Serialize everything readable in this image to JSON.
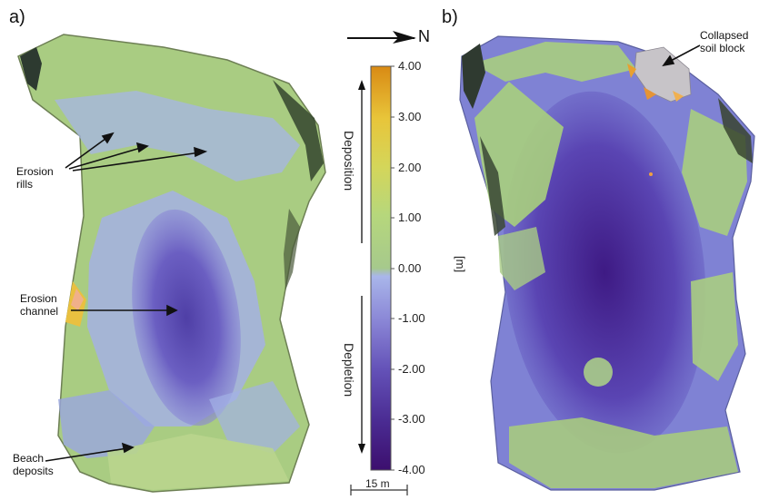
{
  "panels": {
    "a_label": "a)",
    "b_label": "b)"
  },
  "annotations": {
    "erosion_rills": "Erosion\nrills",
    "erosion_channel": "Erosion\nchannel",
    "beach_deposits": "Beach\ndeposits",
    "collapsed_soil_block": "Collapsed\nsoil block"
  },
  "north_arrow": {
    "label": "N"
  },
  "colorbar": {
    "unit": "[m]",
    "deposition_label": "Deposition",
    "depletion_label": "Depletion",
    "ticks": [
      "4.00",
      "3.00",
      "2.00",
      "1.00",
      "0.00",
      "-1.00",
      "-2.00",
      "-3.00",
      "-4.00"
    ],
    "range": [
      -4,
      4
    ]
  },
  "scale_bar": {
    "label": "15 m"
  },
  "colors": {
    "deposition_high": "#d98a14",
    "deposition_mid": "#e8c53a",
    "deposition_low": "#a8cf7a",
    "neutral": "#9fb0e6",
    "depletion_mid": "#5a48b0",
    "depletion_low": "#3c0f6e"
  }
}
